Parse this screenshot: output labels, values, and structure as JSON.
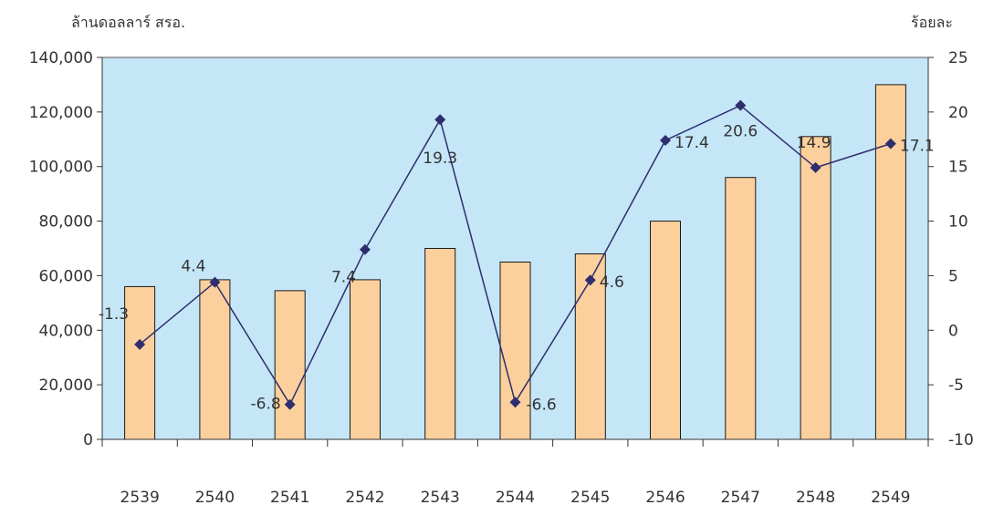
{
  "chart_data": {
    "type": "bar",
    "title": "",
    "ylabel": "ล้านดอลลาร์ สรอ.",
    "y2label": "ร้อยละ",
    "categories": [
      "2539",
      "2540",
      "2541",
      "2542",
      "2543",
      "2544",
      "2545",
      "2546",
      "2547",
      "2548",
      "2549"
    ],
    "ylim": [
      0,
      140000
    ],
    "yticks": [
      "0",
      "20,000",
      "40,000",
      "60,000",
      "80,000",
      "100,000",
      "120,000",
      "140,000"
    ],
    "y2lim": [
      -10,
      25
    ],
    "y2ticks": [
      "-10",
      "-5",
      "0",
      "5",
      "10",
      "15",
      "20",
      "25"
    ],
    "series": [
      {
        "type": "bar",
        "axis": "left",
        "values": [
          56000,
          58500,
          54500,
          58500,
          70000,
          65000,
          68000,
          80000,
          96000,
          111000,
          130000
        ]
      },
      {
        "type": "line",
        "axis": "right",
        "values": [
          -1.3,
          4.4,
          -6.8,
          7.4,
          19.3,
          -6.6,
          4.6,
          17.4,
          20.6,
          14.9,
          17.1
        ],
        "labels": [
          "-1.3",
          "4.4",
          "-6.8",
          "7.4",
          "19.3",
          "-6.6",
          "4.6",
          "17.4",
          "20.6",
          "14.9",
          "17.1"
        ]
      }
    ],
    "grid": false,
    "colors": {
      "plot_bg": "#c5e6f7",
      "bar_fill": "#fcd09c",
      "bar_stroke": "#1a1a1a",
      "line": "#2e2e6e",
      "marker": "#2e2e6e"
    }
  }
}
